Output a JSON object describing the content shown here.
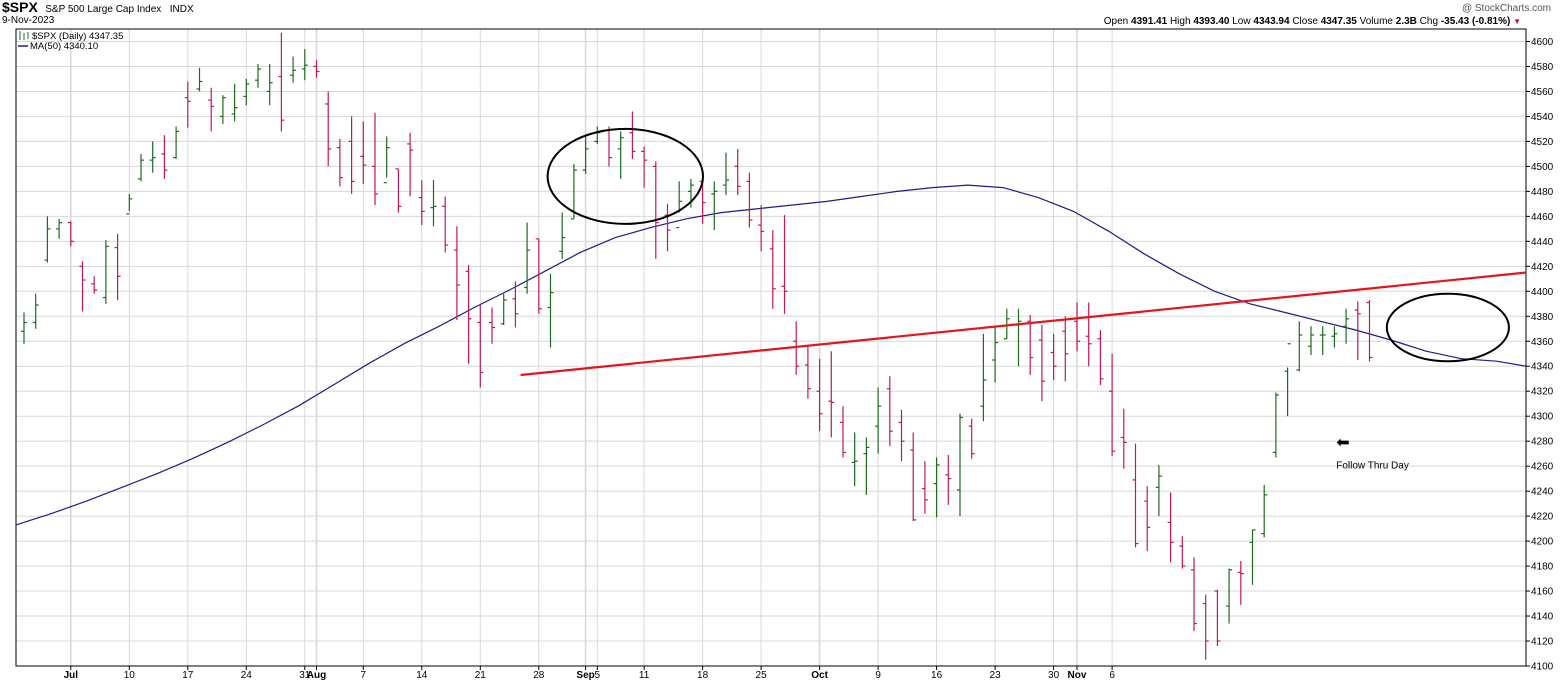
{
  "header": {
    "ticker": "$SPX",
    "name": "S&P 500 Large Cap Index",
    "exchange": "INDX",
    "date": "9-Nov-2023",
    "credit": "@ StockCharts.com",
    "ohlc": {
      "open_label": "Open",
      "open": "4391.41",
      "high_label": "High",
      "high": "4393.40",
      "low_label": "Low",
      "low": "4343.94",
      "close_label": "Close",
      "close": "4347.35",
      "volume_label": "Volume",
      "volume": "2.3B",
      "chg_label": "Chg",
      "chg": "-35.43 (-0.81%)",
      "chg_arrow": "▼"
    }
  },
  "legend": {
    "price": "$SPX (Daily) 4347.35",
    "ma": "MA(50) 4340.10"
  },
  "annotation": {
    "text": "Follow Thru Day",
    "arrow": "⬅"
  },
  "colors": {
    "up": "#1e6b1e",
    "down": "#c2185b",
    "ma": "#1c1c8c",
    "trendline": "#e8141c",
    "grid": "#d8d8d8",
    "circle": "#000000"
  },
  "chart_data": {
    "type": "ohlc",
    "ylim": [
      4100,
      4610
    ],
    "yticks": [
      4100,
      4120,
      4140,
      4160,
      4180,
      4200,
      4220,
      4240,
      4260,
      4280,
      4300,
      4320,
      4340,
      4360,
      4380,
      4400,
      4420,
      4440,
      4460,
      4480,
      4500,
      4520,
      4540,
      4560,
      4580,
      4600
    ],
    "xticks": [
      {
        "label": "Jul",
        "bar": 4,
        "bold": true
      },
      {
        "label": "10",
        "bar": 9
      },
      {
        "label": "17",
        "bar": 14
      },
      {
        "label": "24",
        "bar": 19
      },
      {
        "label": "31",
        "bar": 24
      },
      {
        "label": "Aug",
        "bar": 25,
        "bold": true
      },
      {
        "label": "7",
        "bar": 29
      },
      {
        "label": "14",
        "bar": 34
      },
      {
        "label": "21",
        "bar": 39
      },
      {
        "label": "28",
        "bar": 44
      },
      {
        "label": "Sep",
        "bar": 48,
        "bold": true
      },
      {
        "label": "5",
        "bar": 49
      },
      {
        "label": "11",
        "bar": 53
      },
      {
        "label": "18",
        "bar": 58
      },
      {
        "label": "25",
        "bar": 63
      },
      {
        "label": "Oct",
        "bar": 68,
        "bold": true
      },
      {
        "label": "9",
        "bar": 73
      },
      {
        "label": "16",
        "bar": 78
      },
      {
        "label": "23",
        "bar": 83
      },
      {
        "label": "30",
        "bar": 88
      },
      {
        "label": "Nov",
        "bar": 90,
        "bold": true
      },
      {
        "label": "6",
        "bar": 93
      }
    ],
    "bars": [
      [
        4368,
        4383,
        4358,
        4375
      ],
      [
        4375,
        4398,
        4370,
        4389
      ],
      [
        4425,
        4460,
        4423,
        4450
      ],
      [
        4450,
        4458,
        4442,
        4455
      ],
      [
        4455,
        4456,
        4436,
        4440
      ],
      [
        4420,
        4424,
        4384,
        4409
      ],
      [
        4406,
        4412,
        4398,
        4401
      ],
      [
        4395,
        4441,
        4390,
        4436
      ],
      [
        4435,
        4446,
        4393,
        4412
      ],
      [
        4462,
        4478,
        4464,
        4474
      ],
      [
        4490,
        4510,
        4488,
        4505
      ],
      [
        4505,
        4520,
        4495,
        4507
      ],
      [
        4510,
        4525,
        4490,
        4497
      ],
      [
        4507,
        4532,
        4506,
        4528
      ],
      [
        4555,
        4568,
        4531,
        4552
      ],
      [
        4562,
        4579,
        4560,
        4568
      ],
      [
        4553,
        4563,
        4528,
        4548
      ],
      [
        4540,
        4557,
        4534,
        4555
      ],
      [
        4542,
        4566,
        4536,
        4547
      ],
      [
        4556,
        4570,
        4549,
        4566
      ],
      [
        4569,
        4582,
        4563,
        4578
      ],
      [
        4560,
        4582,
        4549,
        4567
      ],
      [
        4572,
        4607,
        4528,
        4537
      ],
      [
        4573,
        4588,
        4567,
        4577
      ],
      [
        4578,
        4594,
        4569,
        4581
      ],
      [
        4580,
        4585,
        4571,
        4576
      ],
      [
        4550,
        4560,
        4500,
        4514
      ],
      [
        4515,
        4522,
        4484,
        4491
      ],
      [
        4520,
        4540,
        4478,
        4488
      ],
      [
        4508,
        4536,
        4486,
        4501
      ],
      [
        4500,
        4543,
        4469,
        4478
      ],
      [
        4487,
        4524,
        4491,
        4515
      ],
      [
        4498,
        4498,
        4463,
        4468
      ],
      [
        4518,
        4527,
        4476,
        4513
      ],
      [
        4475,
        4489,
        4453,
        4464
      ],
      [
        4467,
        4489,
        4452,
        4468
      ],
      [
        4468,
        4476,
        4431,
        4437
      ],
      [
        4433,
        4452,
        4377,
        4405
      ],
      [
        4416,
        4421,
        4342,
        4378
      ],
      [
        4375,
        4389,
        4323,
        4335
      ],
      [
        4375,
        4387,
        4358,
        4371
      ],
      [
        4374,
        4398,
        4373,
        4393
      ],
      [
        4394,
        4408,
        4371,
        4382
      ],
      [
        4403,
        4455,
        4398,
        4433
      ],
      [
        4442,
        4442,
        4382,
        4386
      ],
      [
        4387,
        4414,
        4355,
        4399
      ],
      [
        4432,
        4463,
        4426,
        4443
      ],
      [
        4458,
        4502,
        4458,
        4497
      ],
      [
        4497,
        4524,
        4494,
        4514
      ],
      [
        4520,
        4532,
        4518,
        4527
      ],
      [
        4529,
        4532,
        4500,
        4507
      ],
      [
        4514,
        4528,
        4490,
        4523
      ],
      [
        4527,
        4544,
        4506,
        4512
      ],
      [
        4512,
        4516,
        4483,
        4505
      ],
      [
        4500,
        4504,
        4426,
        4455
      ],
      [
        4461,
        4470,
        4432,
        4449
      ],
      [
        4451,
        4488,
        4463,
        4472
      ],
      [
        4480,
        4490,
        4467,
        4485
      ],
      [
        4488,
        4492,
        4454,
        4471
      ],
      [
        4478,
        4488,
        4449,
        4480
      ],
      [
        4485,
        4511,
        4477,
        4489
      ],
      [
        4500,
        4514,
        4477,
        4484
      ],
      [
        4488,
        4495,
        4451,
        4457
      ],
      [
        4453,
        4469,
        4432,
        4448
      ],
      [
        4434,
        4449,
        4386,
        4402
      ],
      [
        4404,
        4461,
        4382,
        4400
      ],
      [
        4360,
        4376,
        4333,
        4340
      ],
      [
        4341,
        4356,
        4314,
        4322
      ],
      [
        4320,
        4346,
        4288,
        4302
      ],
      [
        4312,
        4352,
        4283,
        4311
      ],
      [
        4295,
        4308,
        4267,
        4271
      ],
      [
        4263,
        4287,
        4244,
        4264
      ],
      [
        4270,
        4283,
        4237,
        4275
      ],
      [
        4292,
        4323,
        4270,
        4308
      ],
      [
        4322,
        4332,
        4276,
        4288
      ],
      [
        4295,
        4305,
        4264,
        4280
      ],
      [
        4273,
        4287,
        4216,
        4217
      ],
      [
        4242,
        4264,
        4222,
        4233
      ],
      [
        4246,
        4267,
        4219,
        4261
      ],
      [
        4253,
        4269,
        4229,
        4250
      ],
      [
        4241,
        4302,
        4220,
        4299
      ],
      [
        4292,
        4298,
        4266,
        4270
      ],
      [
        4308,
        4366,
        4296,
        4329
      ],
      [
        4345,
        4371,
        4327,
        4359
      ],
      [
        4362,
        4386,
        4362,
        4378
      ],
      [
        4373,
        4386,
        4340,
        4376
      ],
      [
        4376,
        4381,
        4333,
        4347
      ],
      [
        4361,
        4373,
        4312,
        4328
      ],
      [
        4351,
        4366,
        4329,
        4340
      ],
      [
        4368,
        4380,
        4328,
        4350
      ],
      [
        4376,
        4391,
        4352,
        4360
      ],
      [
        4364,
        4391,
        4340,
        4358
      ],
      [
        4362,
        4369,
        4325,
        4330
      ],
      [
        4320,
        4350,
        4268,
        4272
      ],
      [
        4283,
        4306,
        4258,
        4279
      ],
      [
        4249,
        4278,
        4195,
        4198
      ],
      [
        4232,
        4244,
        4192,
        4211
      ],
      [
        4243,
        4261,
        4220,
        4252
      ],
      [
        4215,
        4239,
        4183,
        4199
      ],
      [
        4196,
        4204,
        4178,
        4180
      ],
      [
        4177,
        4187,
        4128,
        4134
      ],
      [
        4150,
        4157,
        4105,
        4120
      ],
      [
        4160,
        4161,
        4116,
        4120
      ],
      [
        4148,
        4178,
        4134,
        4177
      ],
      [
        4175,
        4184,
        4149,
        4174
      ],
      [
        4199,
        4209,
        4165,
        4209
      ],
      [
        4206,
        4245,
        4203,
        4237
      ],
      [
        4271,
        4319,
        4267,
        4317
      ],
      [
        4336,
        4339,
        4300,
        4358
      ]
    ],
    "bars_tail": [
      [
        4337,
        4376,
        4336,
        4365
      ],
      [
        4356,
        4372,
        4349,
        4365
      ],
      [
        4365,
        4372,
        4349,
        4365
      ],
      [
        4364,
        4372,
        4355,
        4366
      ],
      [
        4372,
        4386,
        4358,
        4378
      ],
      [
        4385,
        4392,
        4345,
        4382
      ],
      [
        4391,
        4393,
        4344,
        4347
      ]
    ],
    "ma50": [
      [
        0,
        4213
      ],
      [
        3,
        4222
      ],
      [
        6,
        4232
      ],
      [
        9,
        4243
      ],
      [
        12,
        4254
      ],
      [
        15,
        4266
      ],
      [
        18,
        4279
      ],
      [
        21,
        4293
      ],
      [
        24,
        4308
      ],
      [
        27,
        4325
      ],
      [
        30,
        4342
      ],
      [
        33,
        4358
      ],
      [
        36,
        4372
      ],
      [
        39,
        4387
      ],
      [
        42,
        4401
      ],
      [
        45,
        4416
      ],
      [
        48,
        4431
      ],
      [
        51,
        4443
      ],
      [
        54,
        4451
      ],
      [
        57,
        4458
      ],
      [
        60,
        4463
      ],
      [
        63,
        4466
      ],
      [
        66,
        4469
      ],
      [
        69,
        4472
      ],
      [
        72,
        4476
      ],
      [
        75,
        4480
      ],
      [
        78,
        4483
      ],
      [
        81,
        4485
      ],
      [
        84,
        4483
      ],
      [
        87,
        4475
      ],
      [
        90,
        4464
      ],
      [
        93,
        4448
      ],
      [
        96,
        4430
      ],
      [
        99,
        4414
      ],
      [
        102,
        4400
      ],
      [
        105,
        4390
      ],
      [
        108,
        4383
      ],
      [
        111,
        4376
      ],
      [
        114,
        4369
      ],
      [
        117,
        4361
      ],
      [
        120,
        4352
      ],
      [
        123,
        4346
      ],
      [
        126,
        4344
      ],
      [
        128.5,
        4340
      ]
    ],
    "trendline": [
      [
        42,
        4333
      ],
      [
        118,
        4415
      ]
    ],
    "circles": [
      [
        51,
        4492,
        42,
        38
      ],
      [
        121,
        4371,
        33,
        27
      ]
    ],
    "arrow_bar": 111.5,
    "arrow_price": 4279
  }
}
